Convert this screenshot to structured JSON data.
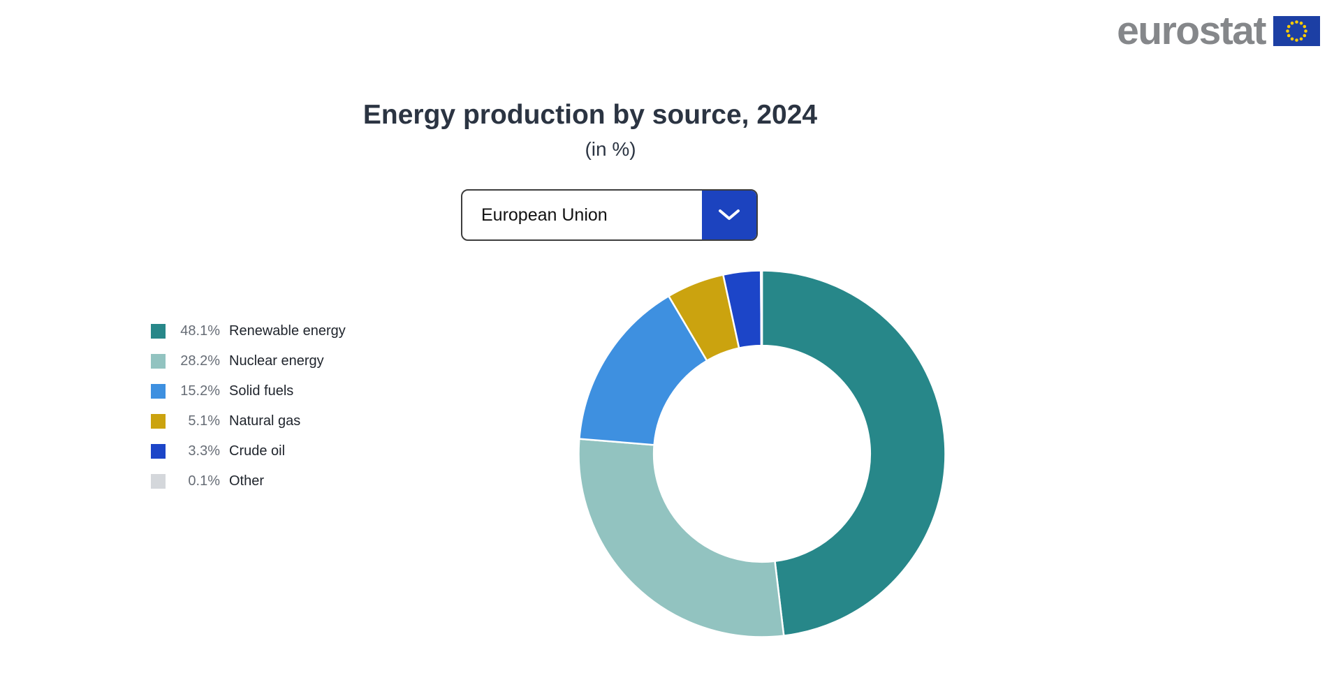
{
  "header": {
    "logo_text": "eurostat",
    "logo_color": "#85878A",
    "eu_flag": {
      "bg": "#1C3FA4",
      "star_color": "#FFCC00"
    }
  },
  "titles": {
    "title": "Energy production by source, 2024",
    "subtitle": "(in %)",
    "text_color": "#2B3442"
  },
  "region_selector": {
    "value": "European Union",
    "button_color": "#1C43BF",
    "chevron_color": "#FFFFFF",
    "border_color": "#3D3D3D"
  },
  "legend": {
    "value_color": "#676D76",
    "label_color": "#20252D",
    "items": [
      {
        "value_text": "48.1%",
        "label": "Renewable energy",
        "color": "#278789"
      },
      {
        "value_text": "28.2%",
        "label": "Nuclear energy",
        "color": "#92C3C0"
      },
      {
        "value_text": "15.2%",
        "label": "Solid fuels",
        "color": "#3E90E0"
      },
      {
        "value_text": "5.1%",
        "label": "Natural gas",
        "color": "#CBA30F"
      },
      {
        "value_text": "3.3%",
        "label": "Crude oil",
        "color": "#1C45C8"
      },
      {
        "value_text": "0.1%",
        "label": "Other",
        "color": "#D4D7DB"
      }
    ]
  },
  "chart_data": {
    "type": "pie",
    "variant": "donut",
    "title": "Energy production by source, 2024",
    "subtitle": "(in %)",
    "region": "European Union",
    "unit": "%",
    "categories": [
      "Renewable energy",
      "Nuclear energy",
      "Solid fuels",
      "Natural gas",
      "Crude oil",
      "Other"
    ],
    "values": [
      48.1,
      28.2,
      15.2,
      5.1,
      3.3,
      0.1
    ],
    "colors": [
      "#278789",
      "#92C3C0",
      "#3E90E0",
      "#CBA30F",
      "#1C45C8",
      "#D4D7DB"
    ],
    "start_angle_deg": 0,
    "direction": "clockwise",
    "inner_radius_ratio": 0.59,
    "separator_color": "#FFFFFF",
    "legend_position": "left"
  }
}
